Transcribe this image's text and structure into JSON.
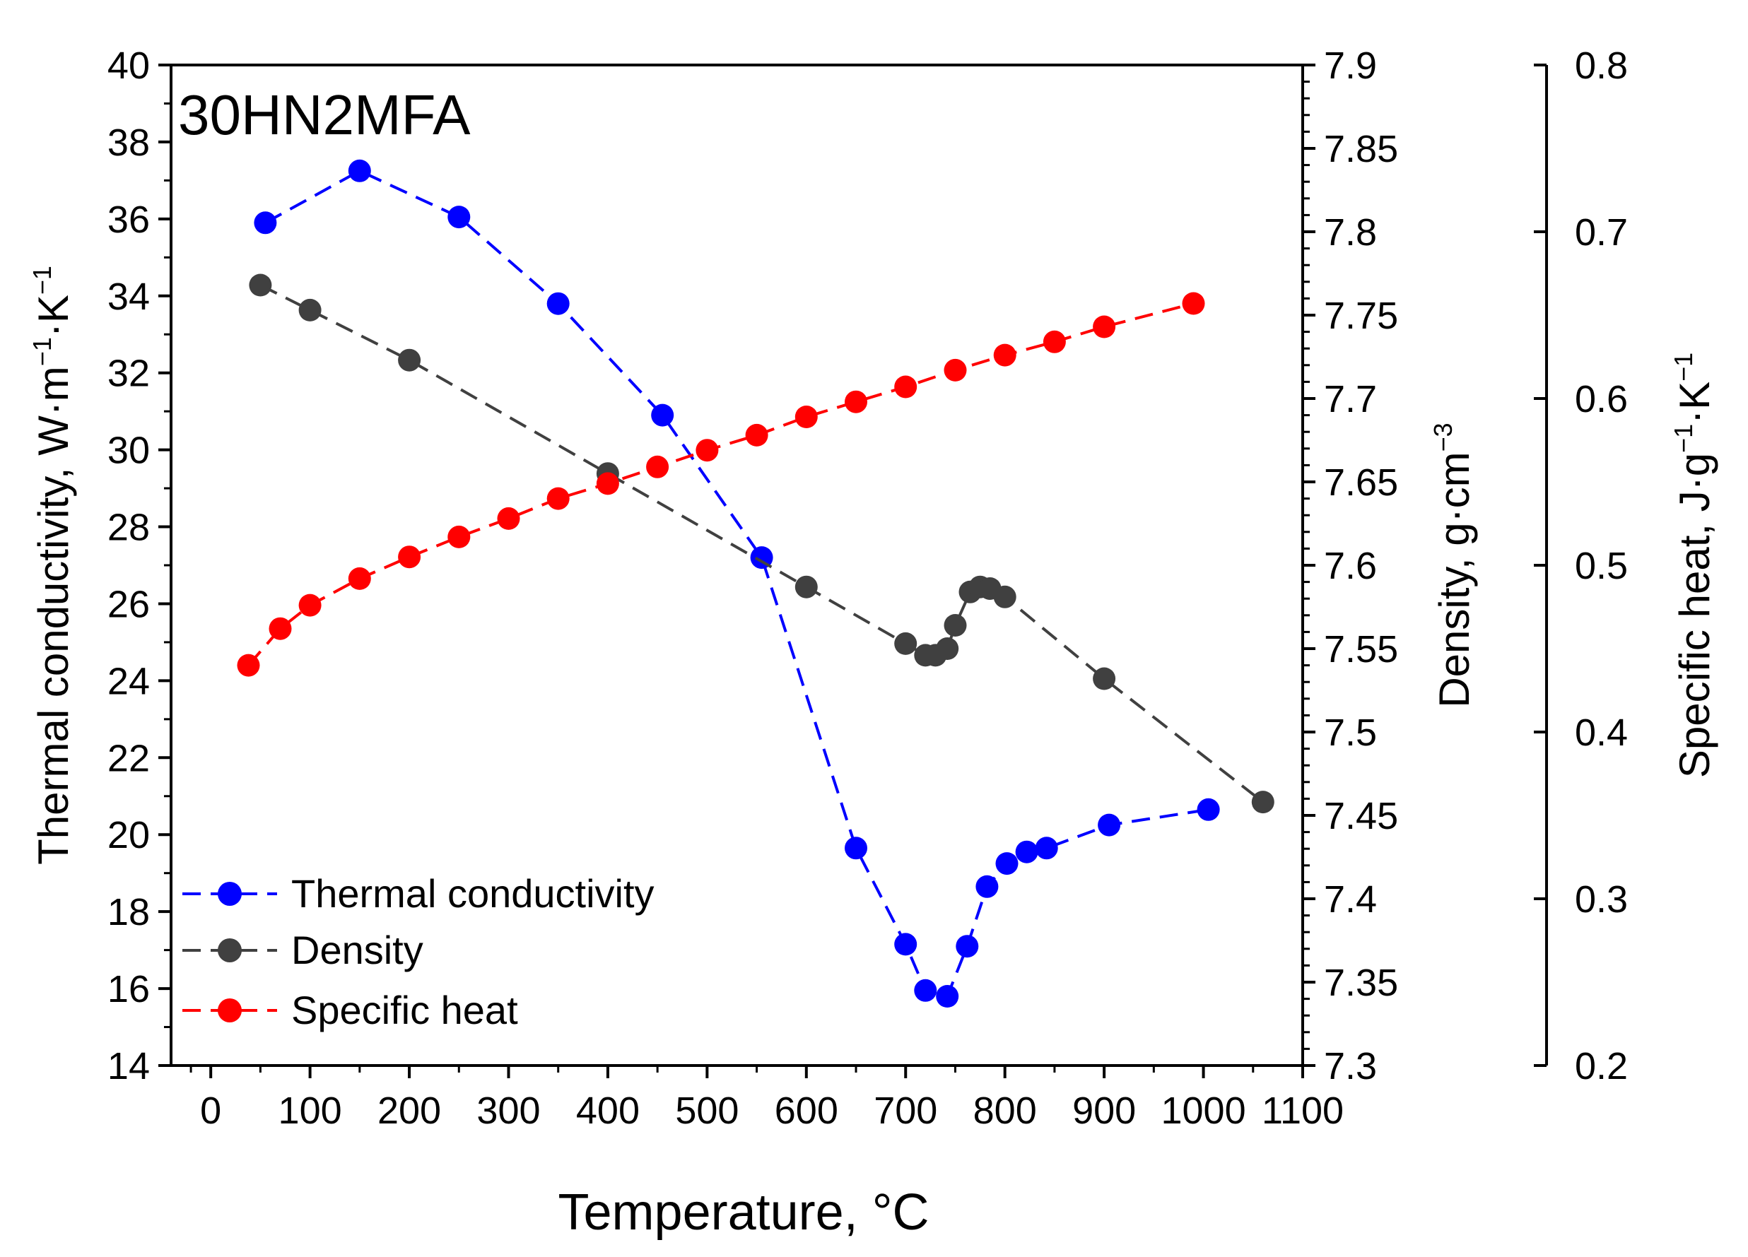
{
  "chart_data": {
    "type": "line",
    "annotation": "30HN2MFA",
    "xlabel": "Temperature, °C",
    "xlim": [
      -40,
      1100
    ],
    "xticks": [
      0,
      100,
      200,
      300,
      400,
      500,
      600,
      700,
      800,
      900,
      1000,
      1100
    ],
    "xtick_labels": [
      "0",
      "100",
      "200",
      "300",
      "400",
      "500",
      "600",
      "700",
      "800",
      "900",
      "1000",
      "1100"
    ],
    "axes": {
      "left": {
        "label_main": "Thermal conductivity, W·m",
        "label_sup1": "−1",
        "label_mid": "·K",
        "label_sup2": "−1",
        "ylim": [
          14,
          40
        ],
        "ticks": [
          14,
          16,
          18,
          20,
          22,
          24,
          26,
          28,
          30,
          32,
          34,
          36,
          38,
          40
        ],
        "tick_labels": [
          "14",
          "16",
          "18",
          "20",
          "22",
          "24",
          "26",
          "28",
          "30",
          "32",
          "34",
          "36",
          "38",
          "40"
        ]
      },
      "right1": {
        "label_main": "Density, g·cm",
        "label_sup1": "−3",
        "ylim": [
          7.3,
          7.9
        ],
        "ticks": [
          7.3,
          7.35,
          7.4,
          7.45,
          7.5,
          7.55,
          7.6,
          7.65,
          7.7,
          7.75,
          7.8,
          7.85,
          7.9
        ],
        "tick_labels": [
          "7.3",
          "7.35",
          "7.4",
          "7.45",
          "7.5",
          "7.55",
          "7.6",
          "7.65",
          "7.7",
          "7.75",
          "7.8",
          "7.85",
          "7.9"
        ]
      },
      "right2": {
        "label_main": "Specific heat, J·g",
        "label_sup1": "−1",
        "label_mid": "·K",
        "label_sup2": "−1",
        "ylim": [
          0.2,
          0.8
        ],
        "ticks": [
          0.2,
          0.3,
          0.4,
          0.5,
          0.6,
          0.7,
          0.8
        ],
        "tick_labels": [
          "0.2",
          "0.3",
          "0.4",
          "0.5",
          "0.6",
          "0.7",
          "0.8"
        ]
      }
    },
    "series": [
      {
        "name": "Thermal conductivity",
        "axis": "left",
        "color": "#0000ff",
        "x": [
          55,
          150,
          250,
          350,
          455,
          555,
          650,
          700,
          720,
          742,
          762,
          782,
          802,
          822,
          842,
          905,
          1005
        ],
        "y": [
          35.9,
          37.25,
          36.05,
          33.8,
          30.9,
          27.2,
          19.65,
          17.15,
          15.95,
          15.8,
          17.1,
          18.65,
          19.25,
          19.55,
          19.65,
          20.25,
          20.65
        ]
      },
      {
        "name": "Density",
        "axis": "right1",
        "color": "#404040",
        "x": [
          50,
          100,
          200,
          400,
          600,
          700,
          720,
          730,
          742,
          750,
          765,
          775,
          785,
          800,
          900,
          1060
        ],
        "y": [
          7.768,
          7.753,
          7.723,
          7.655,
          7.587,
          7.553,
          7.546,
          7.546,
          7.55,
          7.564,
          7.584,
          7.587,
          7.586,
          7.581,
          7.532,
          7.458
        ]
      },
      {
        "name": "Specific heat",
        "axis": "right2",
        "color": "#ff0000",
        "x": [
          38,
          70,
          100,
          150,
          200,
          250,
          300,
          350,
          400,
          450,
          500,
          550,
          600,
          650,
          700,
          750,
          800,
          850,
          900,
          990
        ],
        "y": [
          0.44,
          0.462,
          0.476,
          0.492,
          0.505,
          0.517,
          0.528,
          0.54,
          0.549,
          0.559,
          0.569,
          0.578,
          0.589,
          0.598,
          0.607,
          0.617,
          0.626,
          0.634,
          0.643,
          0.657
        ]
      }
    ],
    "legend": {
      "placement": "bottom-left",
      "entries": [
        "Thermal conductivity",
        "Density",
        "Specific heat"
      ]
    }
  }
}
